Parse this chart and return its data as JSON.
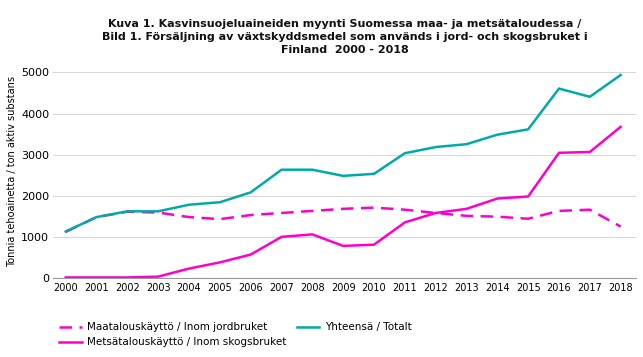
{
  "years": [
    2000,
    2001,
    2002,
    2003,
    2004,
    2005,
    2006,
    2007,
    2008,
    2009,
    2010,
    2011,
    2012,
    2013,
    2014,
    2015,
    2016,
    2017,
    2018
  ],
  "maatalous": [
    1130,
    1490,
    1620,
    1600,
    1490,
    1440,
    1540,
    1590,
    1640,
    1690,
    1720,
    1670,
    1590,
    1520,
    1500,
    1450,
    1640,
    1670,
    1260
  ],
  "metsatalous": [
    25,
    25,
    25,
    45,
    240,
    390,
    580,
    1010,
    1070,
    790,
    820,
    1360,
    1590,
    1690,
    1940,
    1990,
    3050,
    3070,
    3680
  ],
  "yhteensa": [
    1140,
    1490,
    1630,
    1630,
    1790,
    1850,
    2090,
    2640,
    2640,
    2490,
    2540,
    3040,
    3190,
    3260,
    3490,
    3620,
    4610,
    4410,
    4940
  ],
  "title_line1": "Kuva 1. Kasvinsuojeluaineiden myynti Suomessa maa- ja metsätaloudessa /",
  "title_line2": "Bild 1. Försäljning av växtskyddsmedel som används i jord- och skogsbruket i",
  "title_line3": "Finland  2000 - 2018",
  "ylabel": "Tonnia tehoainetta / ton aktiv substans",
  "legend_maatalous": "Maatalouskäyttö / Inom jordbruket",
  "legend_metsatalous": "Metsätalouskäyttö / Inom skogsbruket",
  "legend_yhteensa": "Yhteensä / Totalt",
  "color_maatalous": "#FF00CC",
  "color_metsatalous": "#FF00CC",
  "color_yhteensa": "#00AAAA",
  "ylim": [
    0,
    5200
  ],
  "yticks": [
    0,
    1000,
    2000,
    3000,
    4000,
    5000
  ],
  "bg_color": "#ffffff"
}
